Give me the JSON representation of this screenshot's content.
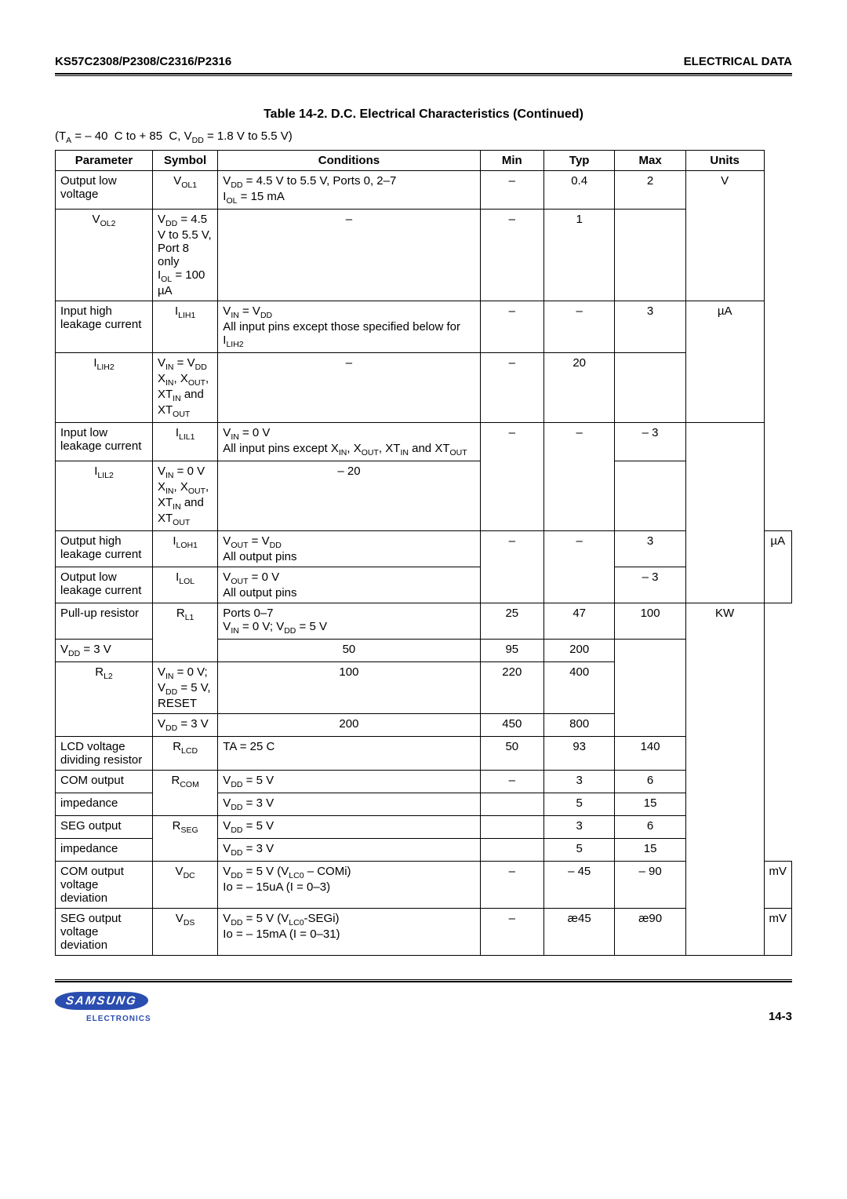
{
  "header": {
    "left": "KS57C2308/P2308/C2316/P2316",
    "right": "ELECTRICAL DATA"
  },
  "table_title": "Table 14-2. D.C. Electrical Characteristics (Continued)",
  "conditions_line": "(T_A = – 40  C to + 85  C, V_DD = 1.8 V to 5.5 V)",
  "columns": [
    "Parameter",
    "Symbol",
    "Conditions",
    "Min",
    "Typ",
    "Max",
    "Units"
  ],
  "col_widths": [
    "13.5%",
    "9%",
    "37.5%",
    "9%",
    "10%",
    "10%",
    "11%"
  ],
  "rows": [
    {
      "param": "Output low voltage",
      "param_rs": 1,
      "sym": "V_OL1",
      "cond": "V_DD = 4.5 V  to  5.5 V, Ports 0, 2–7\nI_OL = 15 mA",
      "min": "–",
      "typ": "0.4",
      "max": "2",
      "units": "V",
      "units_rs": 2
    },
    {
      "param": "",
      "no_param": true,
      "sym": "V_OL2",
      "cond": "V_DD = 4.5 V  to  5.5 V, Port 8 only\nI_OL = 100 µA",
      "min": "–",
      "typ": "–",
      "max": "1",
      "no_units": true
    },
    {
      "param": "Input high leakage current",
      "param_rs": 1,
      "sym": "I_LIH1",
      "cond": "V_IN = V_DD\nAll input pins except those specified below for I_LIH2",
      "min": "–",
      "typ": "–",
      "max": "3",
      "units": "µA",
      "units_rs": 2
    },
    {
      "param": "",
      "no_param": true,
      "sym": "I_LIH2",
      "cond": "V_IN = V_DD\nX_IN,  X_OUT, XT_IN and XT_OUT",
      "min": "–",
      "typ": "–",
      "max": "20",
      "no_units": true
    },
    {
      "param": "Input low leakage current",
      "param_rs": 1,
      "sym": "I_LIL1",
      "cond": "V_IN = 0 V\nAll input pins except X_IN, X_OUT, XT_IN and XT_OUT",
      "min": "–",
      "typ": "–",
      "max": "– 3",
      "num_rs": 2,
      "units": "",
      "units_rs": 4,
      "units_nb": true
    },
    {
      "param": "",
      "no_param": true,
      "sym": "I_LIL2",
      "cond": "V_IN = 0 V\nX_IN, X_OUT, XT_IN and XT_OUT",
      "no_min": true,
      "no_typ": true,
      "max": "– 20",
      "no_units": true
    },
    {
      "param": "Output high leakage current",
      "sym": "I_LOH1",
      "cond": "V_OUT = V_DD\nAll output pins",
      "min": "–",
      "typ": "–",
      "max": "3",
      "num_rs": 2,
      "units": "µA",
      "units_rs": 2
    },
    {
      "param": "Output low leakage current",
      "sym": "I_LOL",
      "cond": "V_OUT = 0 V\nAll output pins",
      "no_min": true,
      "no_typ": true,
      "max": "– 3",
      "no_units": true
    },
    {
      "param": "Pull-up resistor",
      "param_rs": 1,
      "sym": "R_L1",
      "sym_rs": 2,
      "cond": "Ports 0–7\nV_IN = 0 V; V_DD = 5 V",
      "min": "25",
      "typ": "47",
      "max": "100",
      "units": "KW",
      "units_rs": 11
    },
    {
      "param": "",
      "no_param": true,
      "no_sym": true,
      "cond": "V_DD = 3 V",
      "min": "50",
      "typ": "95",
      "max": "200",
      "no_units": true
    },
    {
      "param": "",
      "no_param": true,
      "sym": "R_L2",
      "sym_rs": 2,
      "cond": "V_IN = 0 V; V_DD = 5 V, RESET",
      "min": "100",
      "typ": "220",
      "max": "400",
      "no_units": true
    },
    {
      "param": "",
      "no_param": true,
      "no_sym": true,
      "cond": "V_DD = 3 V",
      "min": "200",
      "typ": "450",
      "max": "800",
      "no_units": true
    },
    {
      "param": "LCD voltage dividing resistor",
      "sym": "R_LCD",
      "cond": "TA = 25  C",
      "min": "50",
      "typ": "93",
      "max": "140",
      "no_units": true
    },
    {
      "param": "COM output",
      "sym": "R_COM",
      "sym_rs": 2,
      "cond": "V_DD = 5 V",
      "min": "–",
      "typ": "3",
      "max": "6",
      "no_units": true
    },
    {
      "param": "impedance",
      "no_sym": true,
      "cond": "V_DD = 3 V",
      "min": "",
      "typ": "5",
      "max": "15",
      "no_units": true
    },
    {
      "param": "SEG output",
      "sym": "R_SEG",
      "sym_rs": 2,
      "cond": "V_DD = 5 V",
      "min": "",
      "typ": "3",
      "max": "6",
      "no_units": true
    },
    {
      "param": "impedance",
      "no_sym": true,
      "cond": "V_DD = 3 V",
      "min": "",
      "typ": "5",
      "max": "15",
      "no_units": true
    },
    {
      "param": "COM output voltage deviation",
      "sym": "V_DC",
      "cond": "V_DD = 5 V (V_LC0 – COMi)\nIo = – 15uA (I = 0–3)",
      "min": "–",
      "typ": "– 45",
      "max": "– 90",
      "units": "mV"
    },
    {
      "param": "SEG output voltage deviation",
      "sym": "V_DS",
      "cond": "V_DD = 5 V (V_LC0-SEGi)\nIo = – 15mA (I = 0–31)",
      "min": "–",
      "typ": "æ45",
      "max": "æ90",
      "units": "mV"
    }
  ],
  "footer": {
    "logo_text": "SAMSUNG",
    "logo_sub": "ELECTRONICS",
    "page_number": "14-3",
    "logo_bg": "#2a4db0"
  }
}
